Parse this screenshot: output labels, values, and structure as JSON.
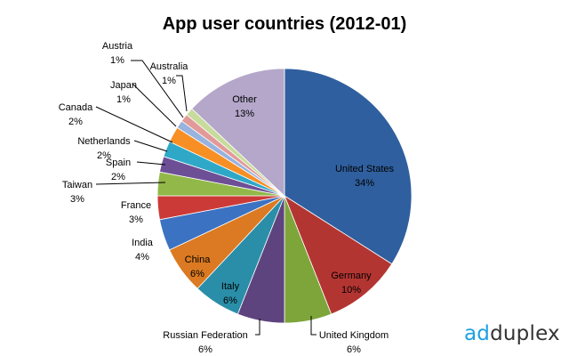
{
  "chart_data": {
    "type": "pie",
    "title": "App user countries (2012-01)",
    "slices": [
      {
        "label": "United States",
        "pct_label": "34%",
        "value": 34,
        "color": "#2F5F9E"
      },
      {
        "label": "Germany",
        "pct_label": "10%",
        "value": 10,
        "color": "#B33532"
      },
      {
        "label": "United Kingdom",
        "pct_label": "6%",
        "value": 6,
        "color": "#7EA53A"
      },
      {
        "label": "Russian Federation",
        "pct_label": "6%",
        "value": 6,
        "color": "#5E447F"
      },
      {
        "label": "Italy",
        "pct_label": "6%",
        "value": 6,
        "color": "#2A8EA8"
      },
      {
        "label": "China",
        "pct_label": "6%",
        "value": 6,
        "color": "#DB7A22"
      },
      {
        "label": "India",
        "pct_label": "4%",
        "value": 4,
        "color": "#3C72C2"
      },
      {
        "label": "France",
        "pct_label": "3%",
        "value": 3,
        "color": "#CC3A37"
      },
      {
        "label": "Taiwan",
        "pct_label": "3%",
        "value": 3,
        "color": "#92B849"
      },
      {
        "label": "Spain",
        "pct_label": "2%",
        "value": 2,
        "color": "#6D4F96"
      },
      {
        "label": "Netherlands",
        "pct_label": "2%",
        "value": 2,
        "color": "#2FA8C8"
      },
      {
        "label": "Canada",
        "pct_label": "2%",
        "value": 2,
        "color": "#F78F25"
      },
      {
        "label": "Japan",
        "pct_label": "1%",
        "value": 1,
        "color": "#97B3DE"
      },
      {
        "label": "Austria",
        "pct_label": "1%",
        "value": 1,
        "color": "#E29A99"
      },
      {
        "label": "Australia",
        "pct_label": "1%",
        "value": 1,
        "color": "#C7DC9C"
      },
      {
        "label": "Other",
        "pct_label": "13%",
        "value": 13,
        "color": "#B4A7CA"
      }
    ]
  },
  "logo": {
    "part1": "ad",
    "part2": "duplex"
  }
}
